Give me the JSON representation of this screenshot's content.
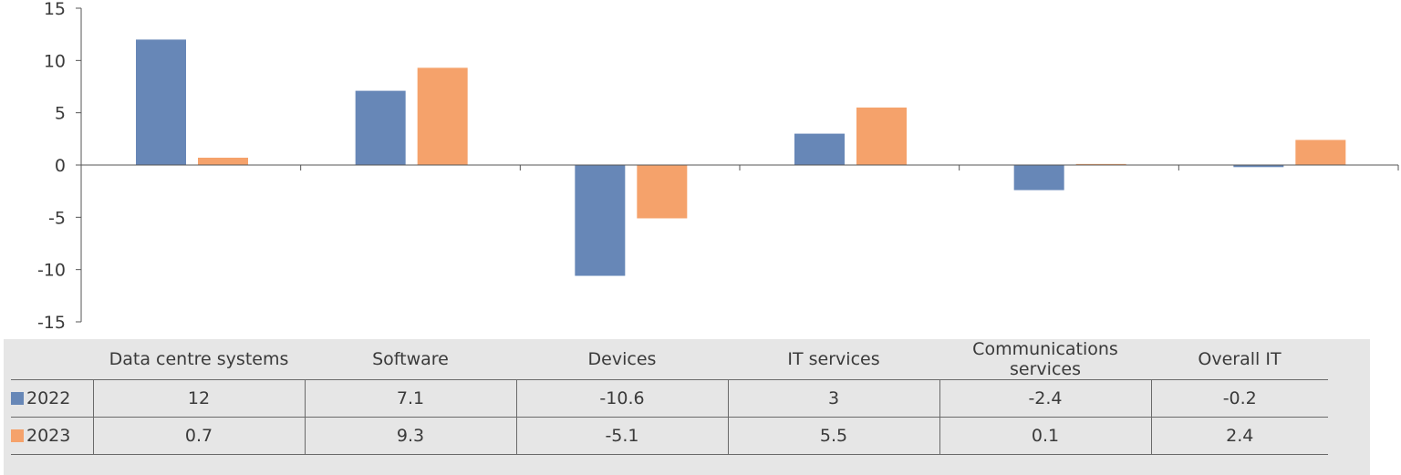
{
  "colors": {
    "s2022": "#6787b7",
    "s2023": "#f5a26b",
    "axis": "#555555"
  },
  "chart_data": {
    "type": "bar",
    "categories": [
      "Data centre systems",
      "Software",
      "Devices",
      "IT services",
      "Communications services",
      "Overall IT"
    ],
    "series": [
      {
        "name": "2022",
        "values": [
          12,
          7.1,
          -10.6,
          3,
          -2.4,
          -0.2
        ]
      },
      {
        "name": "2023",
        "values": [
          0.7,
          9.3,
          -5.1,
          5.5,
          0.1,
          2.4
        ]
      }
    ],
    "value_labels": [
      [
        "12",
        "7.1",
        "-10.6",
        "3",
        "-2.4",
        "-0.2"
      ],
      [
        "0.7",
        "9.3",
        "-5.1",
        "5.5",
        "0.1",
        "2.4"
      ]
    ],
    "ylim": [
      -15,
      15
    ],
    "yticks": [
      15,
      10,
      5,
      0,
      -5,
      -10,
      -15
    ],
    "title": "",
    "xlabel": "",
    "ylabel": "",
    "legend": "data-table-rows",
    "grid": false
  }
}
